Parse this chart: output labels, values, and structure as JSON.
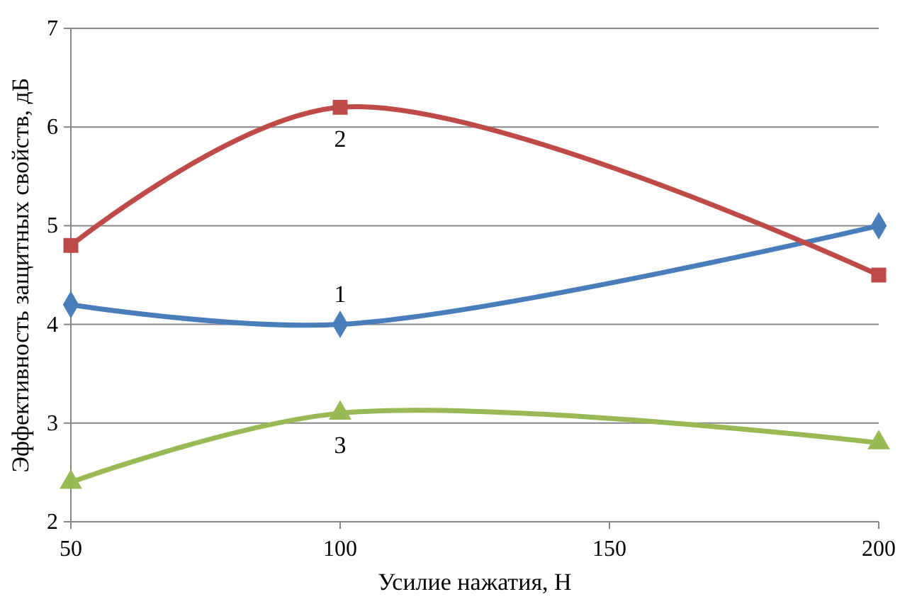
{
  "chart_data": {
    "type": "line",
    "xlabel": "Усилие нажатия, Н",
    "ylabel": "Эффективность защитных свойств, дБ",
    "x": [
      50,
      100,
      200
    ],
    "xlim": [
      50,
      200
    ],
    "xticks": [
      50,
      100,
      150,
      200
    ],
    "ylim": [
      2,
      7
    ],
    "yticks": [
      2,
      3,
      4,
      5,
      6,
      7
    ],
    "grid": "y",
    "line_style": "solid",
    "series": [
      {
        "name": "1",
        "color": "#4a7ebb",
        "marker": "diamond",
        "values": [
          4.2,
          4.0,
          5.0
        ]
      },
      {
        "name": "2",
        "color": "#be4b48",
        "marker": "square",
        "values": [
          4.8,
          6.2,
          4.5
        ]
      },
      {
        "name": "3",
        "color": "#98b954",
        "marker": "triangle",
        "values": [
          2.4,
          3.1,
          2.8
        ]
      }
    ]
  }
}
